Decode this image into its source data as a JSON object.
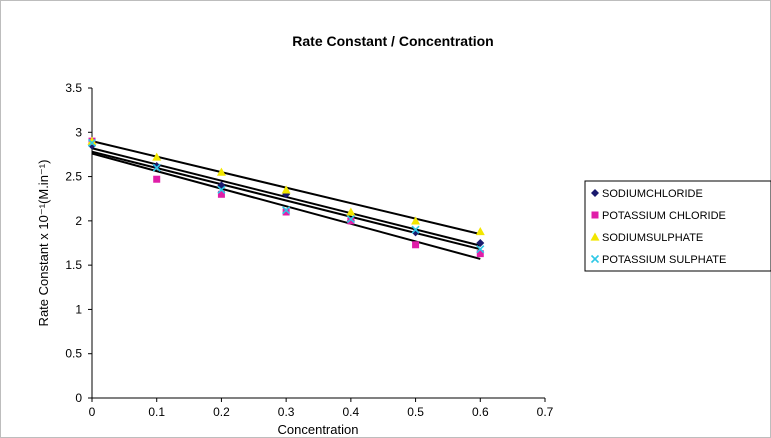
{
  "chart_data": {
    "type": "scatter",
    "title": "Rate Constant / Concentration",
    "xlabel": "Concentration",
    "ylabel": "Rate Constant x 10⁻¹(M.in⁻¹)",
    "xlim": [
      0,
      0.7
    ],
    "ylim": [
      0,
      3.5
    ],
    "x_ticks": [
      "0",
      "0.1",
      "0.2",
      "0.3",
      "0.4",
      "0.5",
      "0.6",
      "0.7"
    ],
    "y_ticks": [
      "0",
      "0.5",
      "1",
      "1.5",
      "2",
      "2.5",
      "3",
      "3.5"
    ],
    "grid": false,
    "legend_position": "right",
    "series": [
      {
        "name": "SODIUMCHLORIDE",
        "marker": "diamond",
        "color": "#1a1a6e",
        "x": [
          0,
          0.1,
          0.2,
          0.3,
          0.4,
          0.5,
          0.6
        ],
        "y": [
          2.85,
          2.62,
          2.4,
          2.3,
          2.0,
          1.87,
          1.75
        ],
        "trendline": [
          2.82,
          1.72
        ]
      },
      {
        "name": "POTASSIUM CHLORIDE",
        "marker": "square",
        "color": "#e01ea8",
        "x": [
          0,
          0.1,
          0.2,
          0.3,
          0.4,
          0.5,
          0.6
        ],
        "y": [
          2.9,
          2.47,
          2.3,
          2.1,
          2.0,
          1.73,
          1.63
        ],
        "trendline": [
          2.76,
          1.57
        ]
      },
      {
        "name": "SODIUMSULPHATE",
        "marker": "triangle",
        "color": "#f2e600",
        "x": [
          0,
          0.1,
          0.2,
          0.3,
          0.4,
          0.5,
          0.6
        ],
        "y": [
          2.9,
          2.72,
          2.55,
          2.35,
          2.1,
          2.0,
          1.88
        ],
        "trendline": [
          2.9,
          1.85
        ]
      },
      {
        "name": "POTASSIUM SULPHATE",
        "marker": "x",
        "color": "#2ec8e6",
        "x": [
          0,
          0.1,
          0.2,
          0.3,
          0.4,
          0.5,
          0.6
        ],
        "y": [
          2.88,
          2.6,
          2.35,
          2.12,
          2.02,
          1.9,
          1.68
        ],
        "trendline": [
          2.78,
          1.68
        ]
      }
    ]
  }
}
